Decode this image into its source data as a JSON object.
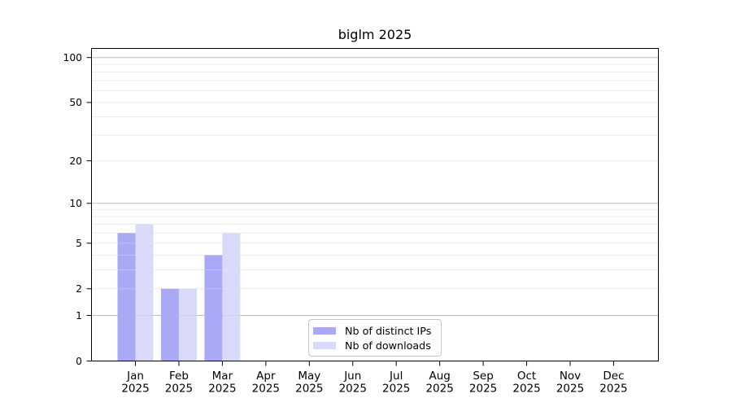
{
  "chart_data": {
    "type": "bar",
    "title": "biglm 2025",
    "categories": [
      "Jan",
      "Feb",
      "Mar",
      "Apr",
      "May",
      "Jun",
      "Jul",
      "Aug",
      "Sep",
      "Oct",
      "Nov",
      "Dec"
    ],
    "x_tick_year_label": "2025",
    "series": [
      {
        "key": "distinct-ips",
        "name": "Nb of distinct IPs",
        "color": "#a9a9f6",
        "values": [
          6,
          2,
          4,
          0,
          0,
          0,
          0,
          0,
          0,
          0,
          0,
          0
        ]
      },
      {
        "key": "downloads",
        "name": "Nb of downloads",
        "color": "#d9d9fa",
        "values": [
          7,
          2,
          6,
          0,
          0,
          0,
          0,
          0,
          0,
          0,
          0,
          0
        ]
      }
    ],
    "y_axis": {
      "scale": "log10(1+x)",
      "tick_values": [
        0,
        1,
        2,
        5,
        10,
        20,
        50,
        100
      ],
      "major_gridlines": [
        1,
        10,
        100
      ],
      "minor_gridlines": [
        2,
        3,
        4,
        5,
        6,
        7,
        8,
        9,
        20,
        30,
        40,
        50,
        60,
        70,
        80,
        90
      ],
      "ylim": [
        0,
        116
      ]
    },
    "legend_position": "bottom-center-inside",
    "grid": true,
    "colors": {
      "background": "#ffffff",
      "axis": "#000000",
      "text": "#000000",
      "major_grid": "#bcbcbc",
      "minor_grid": "#ececec",
      "legend_border": "#c6c6c6"
    }
  }
}
